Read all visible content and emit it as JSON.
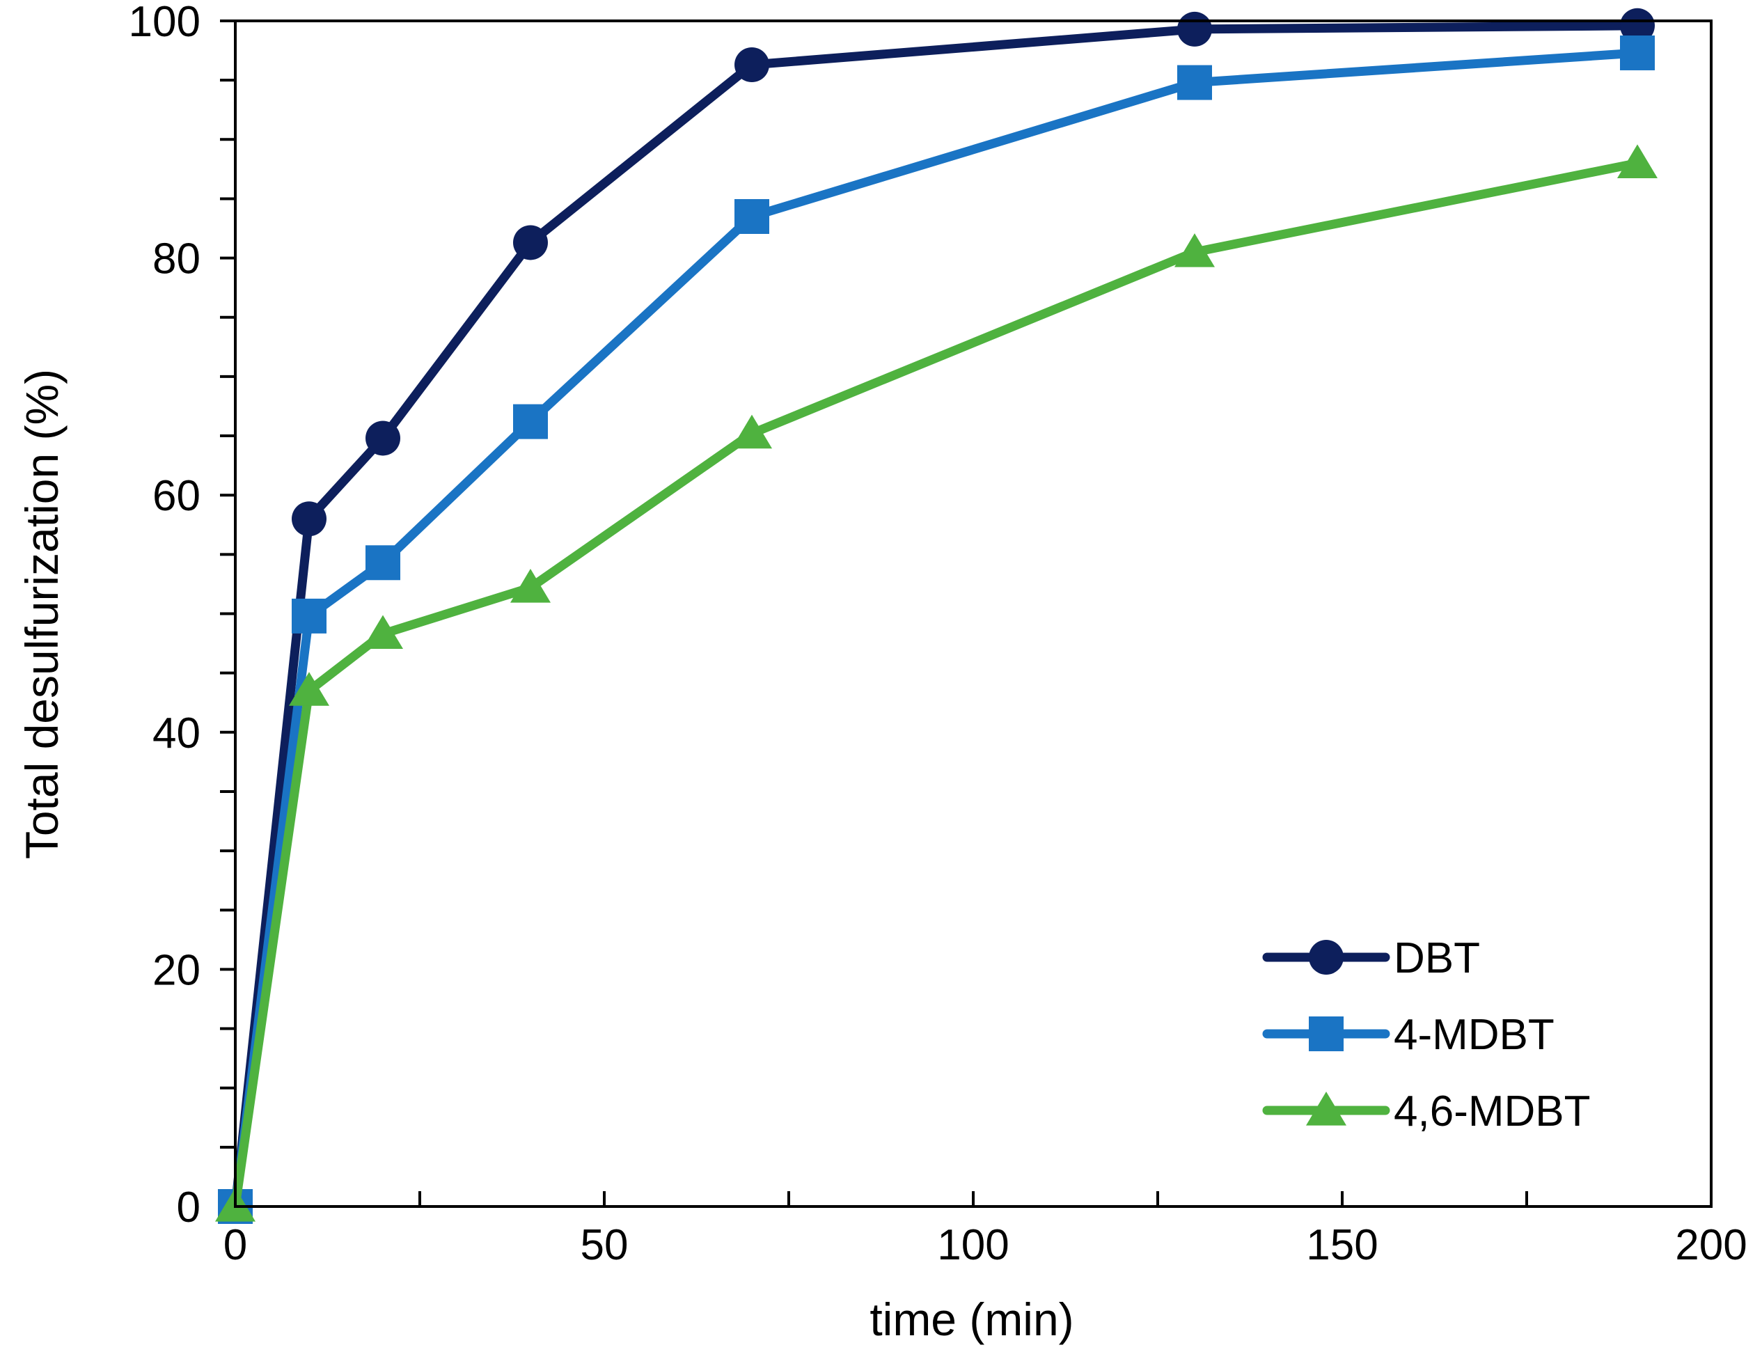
{
  "chart_data": {
    "type": "line",
    "title": "",
    "xlabel": "time (min)",
    "ylabel": "Total desulfurization (%)",
    "xlim": [
      0,
      200
    ],
    "ylim": [
      0,
      100
    ],
    "xticks": [
      0,
      50,
      100,
      150,
      200
    ],
    "yticks": [
      0,
      20,
      40,
      60,
      80,
      100
    ],
    "x_minor_step": 25,
    "y_minor_step": 5,
    "grid": false,
    "legend_position": "bottom-right",
    "series": [
      {
        "name": "DBT",
        "color": "#0d1f5c",
        "marker": "circle",
        "x": [
          0,
          10,
          20,
          40,
          70,
          130,
          190
        ],
        "y": [
          0,
          58,
          64.8,
          81.3,
          96.3,
          99.3,
          99.6
        ]
      },
      {
        "name": "4-MDBT",
        "color": "#1a74c4",
        "marker": "square",
        "x": [
          0,
          10,
          20,
          40,
          70,
          130,
          190
        ],
        "y": [
          0,
          49.8,
          54.3,
          66.2,
          83.5,
          94.8,
          97.3
        ]
      },
      {
        "name": "4,6-MDBT",
        "color": "#4fb23f",
        "marker": "triangle",
        "x": [
          0,
          10,
          20,
          40,
          70,
          130,
          190
        ],
        "y": [
          0,
          43.5,
          48.3,
          52.2,
          65.2,
          80.5,
          88
        ]
      }
    ]
  }
}
